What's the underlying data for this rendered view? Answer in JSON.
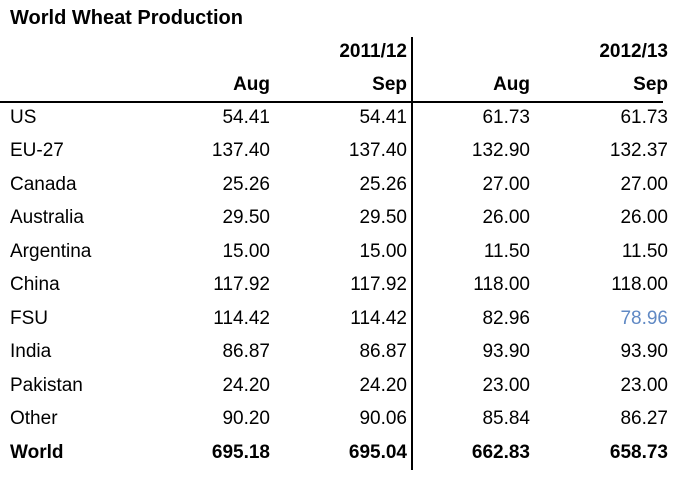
{
  "title": "World Wheat Production",
  "chart_data": {
    "type": "table",
    "title": "World Wheat Production",
    "year_groups": [
      "2011/12",
      "2012/13"
    ],
    "month_headers": [
      "Aug",
      "Sep",
      "Aug",
      "Sep"
    ],
    "highlight_color": "#6089c4",
    "rows": [
      {
        "label": "US",
        "values": [
          "54.41",
          "54.41",
          "61.73",
          "61.73"
        ]
      },
      {
        "label": "EU-27",
        "values": [
          "137.40",
          "137.40",
          "132.90",
          "132.37"
        ]
      },
      {
        "label": "Canada",
        "values": [
          "25.26",
          "25.26",
          "27.00",
          "27.00"
        ]
      },
      {
        "label": "Australia",
        "values": [
          "29.50",
          "29.50",
          "26.00",
          "26.00"
        ]
      },
      {
        "label": "Argentina",
        "values": [
          "15.00",
          "15.00",
          "11.50",
          "11.50"
        ]
      },
      {
        "label": "China",
        "values": [
          "117.92",
          "117.92",
          "118.00",
          "118.00"
        ]
      },
      {
        "label": "FSU",
        "values": [
          "114.42",
          "114.42",
          "82.96",
          "78.96"
        ],
        "highlight": [
          3
        ]
      },
      {
        "label": "India",
        "values": [
          "86.87",
          "86.87",
          "93.90",
          "93.90"
        ]
      },
      {
        "label": "Pakistan",
        "values": [
          "24.20",
          "24.20",
          "23.00",
          "23.00"
        ]
      },
      {
        "label": "Other",
        "values": [
          "90.20",
          "90.06",
          "85.84",
          "86.27"
        ]
      },
      {
        "label": "World",
        "values": [
          "695.18",
          "695.04",
          "662.83",
          "658.73"
        ],
        "bold": true
      }
    ]
  }
}
